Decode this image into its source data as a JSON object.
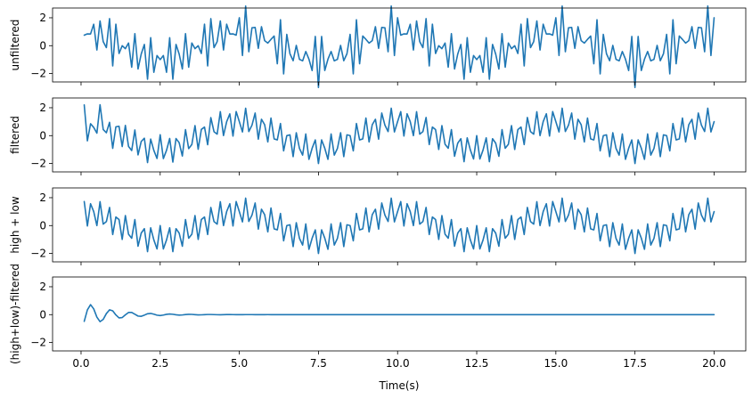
{
  "chart_data": {
    "type": "line",
    "xlabel": "Time(s)",
    "xlim": [
      -0.9,
      21.0
    ],
    "x_ticks": [
      0.0,
      2.5,
      5.0,
      7.5,
      10.0,
      12.5,
      15.0,
      17.5,
      20.0
    ],
    "x_tick_labels": [
      "0.0",
      "2.5",
      "5.0",
      "7.5",
      "10.0",
      "12.5",
      "15.0",
      "17.5",
      "20.0"
    ],
    "shared_x": true,
    "grid": false,
    "color": "#1f77b4",
    "x": {
      "start": 0.1,
      "end": 20.0,
      "step": 0.1
    },
    "panels": [
      {
        "ylabel": "unfiltered",
        "ylim": [
          -2.6,
          2.7
        ],
        "y_ticks": [
          -2,
          0,
          2
        ],
        "y_tick_labels": [
          "−2",
          "0",
          "2"
        ],
        "components": [
          {
            "kind": "sine",
            "amplitude": 1.0,
            "frequency_hz": 0.2,
            "phase_deg": 90
          },
          {
            "kind": "sine",
            "amplitude": 1.0,
            "frequency_hz": 3.7,
            "phase_deg": 0
          },
          {
            "kind": "sine",
            "amplitude": 1.0,
            "frequency_hz": 4.6,
            "phase_deg": 90
          }
        ]
      },
      {
        "ylabel": "filtered",
        "ylim": [
          -2.6,
          2.7
        ],
        "y_ticks": [
          -2,
          0,
          2
        ],
        "y_tick_labels": [
          "−2",
          "0",
          "2"
        ],
        "components": [
          {
            "kind": "sine",
            "amplitude": 1.0,
            "frequency_hz": 0.2,
            "phase_deg": 90
          },
          {
            "kind": "sine",
            "amplitude": 1.0,
            "frequency_hz": 3.7,
            "phase_deg": 0
          }
        ],
        "transient": {
          "amplitude": 0.9,
          "frequency_hz": 1.6,
          "decay_per_s": 1.1,
          "phase_deg": 90
        }
      },
      {
        "ylabel": "high + low",
        "ylim": [
          -2.6,
          2.7
        ],
        "y_ticks": [
          -2,
          0,
          2
        ],
        "y_tick_labels": [
          "−2",
          "0",
          "2"
        ],
        "components": [
          {
            "kind": "sine",
            "amplitude": 1.0,
            "frequency_hz": 0.2,
            "phase_deg": 90
          },
          {
            "kind": "sine",
            "amplitude": 1.0,
            "frequency_hz": 3.7,
            "phase_deg": 0
          }
        ]
      },
      {
        "ylabel": "(high+low)-filtered",
        "ylim": [
          -2.6,
          2.7
        ],
        "y_ticks": [
          -2,
          0,
          2
        ],
        "y_tick_labels": [
          "−2",
          "0",
          "2"
        ],
        "components": [],
        "transient": {
          "amplitude": 0.9,
          "frequency_hz": 1.6,
          "decay_per_s": 1.1,
          "phase_deg": 90
        },
        "negate_transient": true
      }
    ]
  }
}
